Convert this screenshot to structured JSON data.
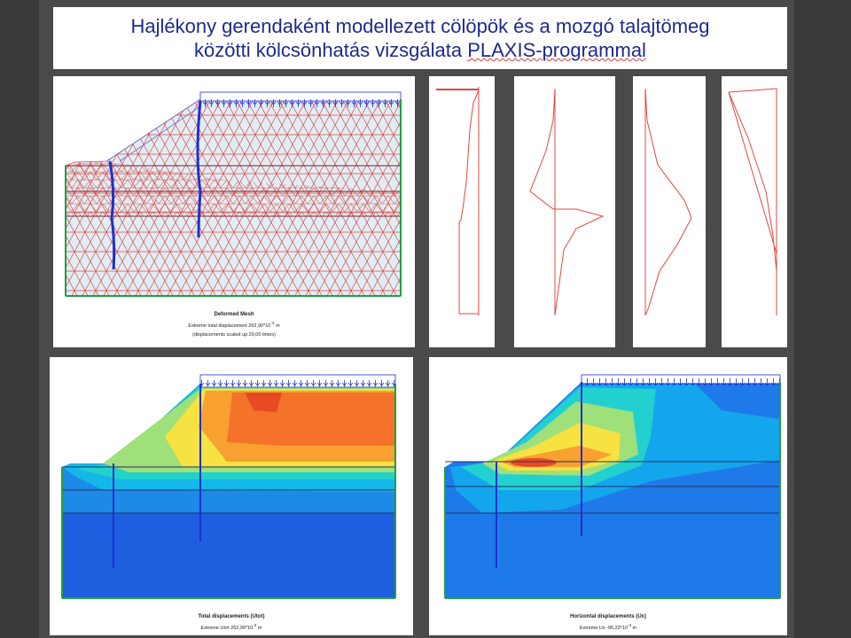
{
  "slide": {
    "title_line1": "Hajlékony gerendaként modellezett cölöpök és a mozgó talajtömeg",
    "title_line2_prefix": "közötti kölcsönhatás vizsgálata ",
    "title_line2_underlined": "PLAXIS-programmal"
  },
  "panels": {
    "mesh": {
      "caption_title": "Deformed Mesh",
      "caption_line1": "Extreme total displacement 262,90*10",
      "caption_line1_sup": "-3",
      "caption_line1_unit": " m",
      "caption_line2": "(displacements scaled up 20,00 times)"
    },
    "total": {
      "caption_title": "Total displacements (Utot)",
      "caption_line1": "Extreme Utot 262,90*10",
      "caption_line1_sup": "-3",
      "caption_line1_unit": " m"
    },
    "horizontal": {
      "caption_title": "Horizontal displacements (Ux)",
      "caption_line1": "Extreme Ux -95,23*10",
      "caption_line1_sup": "-3",
      "caption_line1_unit": " m"
    }
  },
  "colors": {
    "title_text": "#1f2a8a",
    "mesh_line": "#e0483f",
    "pile": "#1f2fd0",
    "deep_blue": "#1e5fe0"
  }
}
